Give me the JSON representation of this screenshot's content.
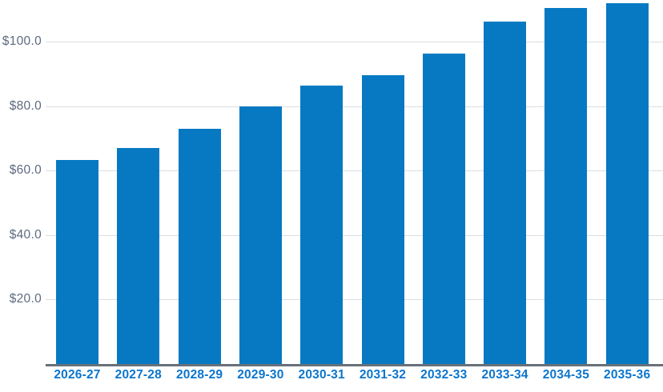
{
  "chart": {
    "colors": {
      "bar": "#0779c2",
      "x_label": "#0b75cd",
      "y_label": "#5d6b80",
      "gridline": "#dadde2",
      "axis_line": "#68717a",
      "background": "#ffffff"
    }
  },
  "chart_data": {
    "type": "bar",
    "title": "",
    "xlabel": "",
    "ylabel": "",
    "categories": [
      "2026-27",
      "2027-28",
      "2028-29",
      "2029-30",
      "2030-31",
      "2031-32",
      "2032-33",
      "2033-34",
      "2034-35",
      "2035-36"
    ],
    "values": [
      63.4,
      67.0,
      73.1,
      79.9,
      86.5,
      89.6,
      96.3,
      106.2,
      110.4,
      111.9
    ],
    "y_tick_values": [
      20,
      40,
      60,
      80,
      100
    ],
    "y_tick_labels": [
      "$20.0",
      "$40.0",
      "$60.0",
      "$80.0",
      "$100.0"
    ],
    "ylim": [
      0,
      113
    ],
    "grid": true,
    "legend": false
  }
}
